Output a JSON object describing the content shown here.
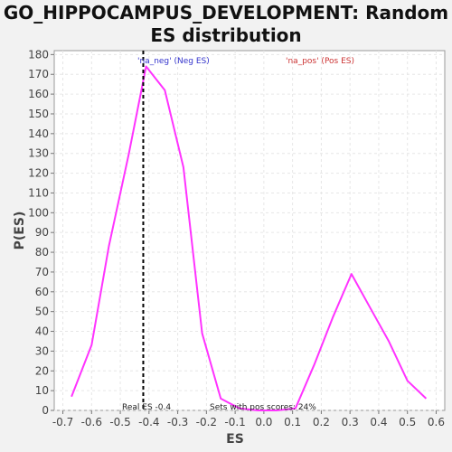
{
  "chart_data": {
    "type": "line",
    "title": "GO_HIPPOCAMPUS_DEVELOPMENT: Random ES distribution",
    "xlabel": "ES",
    "ylabel": "P(ES)",
    "xlim": [
      -0.73,
      0.63
    ],
    "ylim": [
      0,
      182
    ],
    "x_ticks": [
      -0.7,
      -0.6,
      -0.5,
      -0.4,
      -0.3,
      -0.2,
      -0.1,
      0.0,
      0.1,
      0.2,
      0.3,
      0.4,
      0.5,
      0.6
    ],
    "x_tick_labels": [
      "-0.7",
      "-0.6",
      "-0.5",
      "-0.4",
      "-0.3",
      "-0.2",
      "-0.1",
      "0.0",
      "0.1",
      "0.2",
      "0.3",
      "0.4",
      "0.5",
      "0.6"
    ],
    "y_ticks": [
      0,
      10,
      20,
      30,
      40,
      50,
      60,
      70,
      80,
      90,
      100,
      110,
      120,
      130,
      140,
      150,
      160,
      170,
      180
    ],
    "grid": true,
    "series": [
      {
        "color": "#ff33ff",
        "x": [
          -0.67,
          -0.6,
          -0.54,
          -0.47,
          -0.41,
          -0.345,
          -0.28,
          -0.215,
          -0.15,
          -0.085,
          -0.02,
          0.045,
          0.11,
          0.175,
          0.24,
          0.305,
          0.37,
          0.435,
          0.5,
          0.565
        ],
        "y": [
          7,
          33,
          83,
          130,
          174,
          162,
          123,
          39,
          6,
          1,
          0,
          0,
          1,
          23,
          47,
          69,
          52,
          35,
          15,
          6
        ]
      }
    ],
    "legend": [
      {
        "text": "'na_neg' (Neg ES)",
        "color": "#3333cc"
      },
      {
        "text": "'na_pos' (Pos ES)",
        "color": "#cc3333"
      }
    ],
    "annotations": {
      "real_es_value": -0.42,
      "real_es_label": "Real ES -0.4",
      "pos_scores_label": "Sets with pos scores: 24%"
    }
  }
}
